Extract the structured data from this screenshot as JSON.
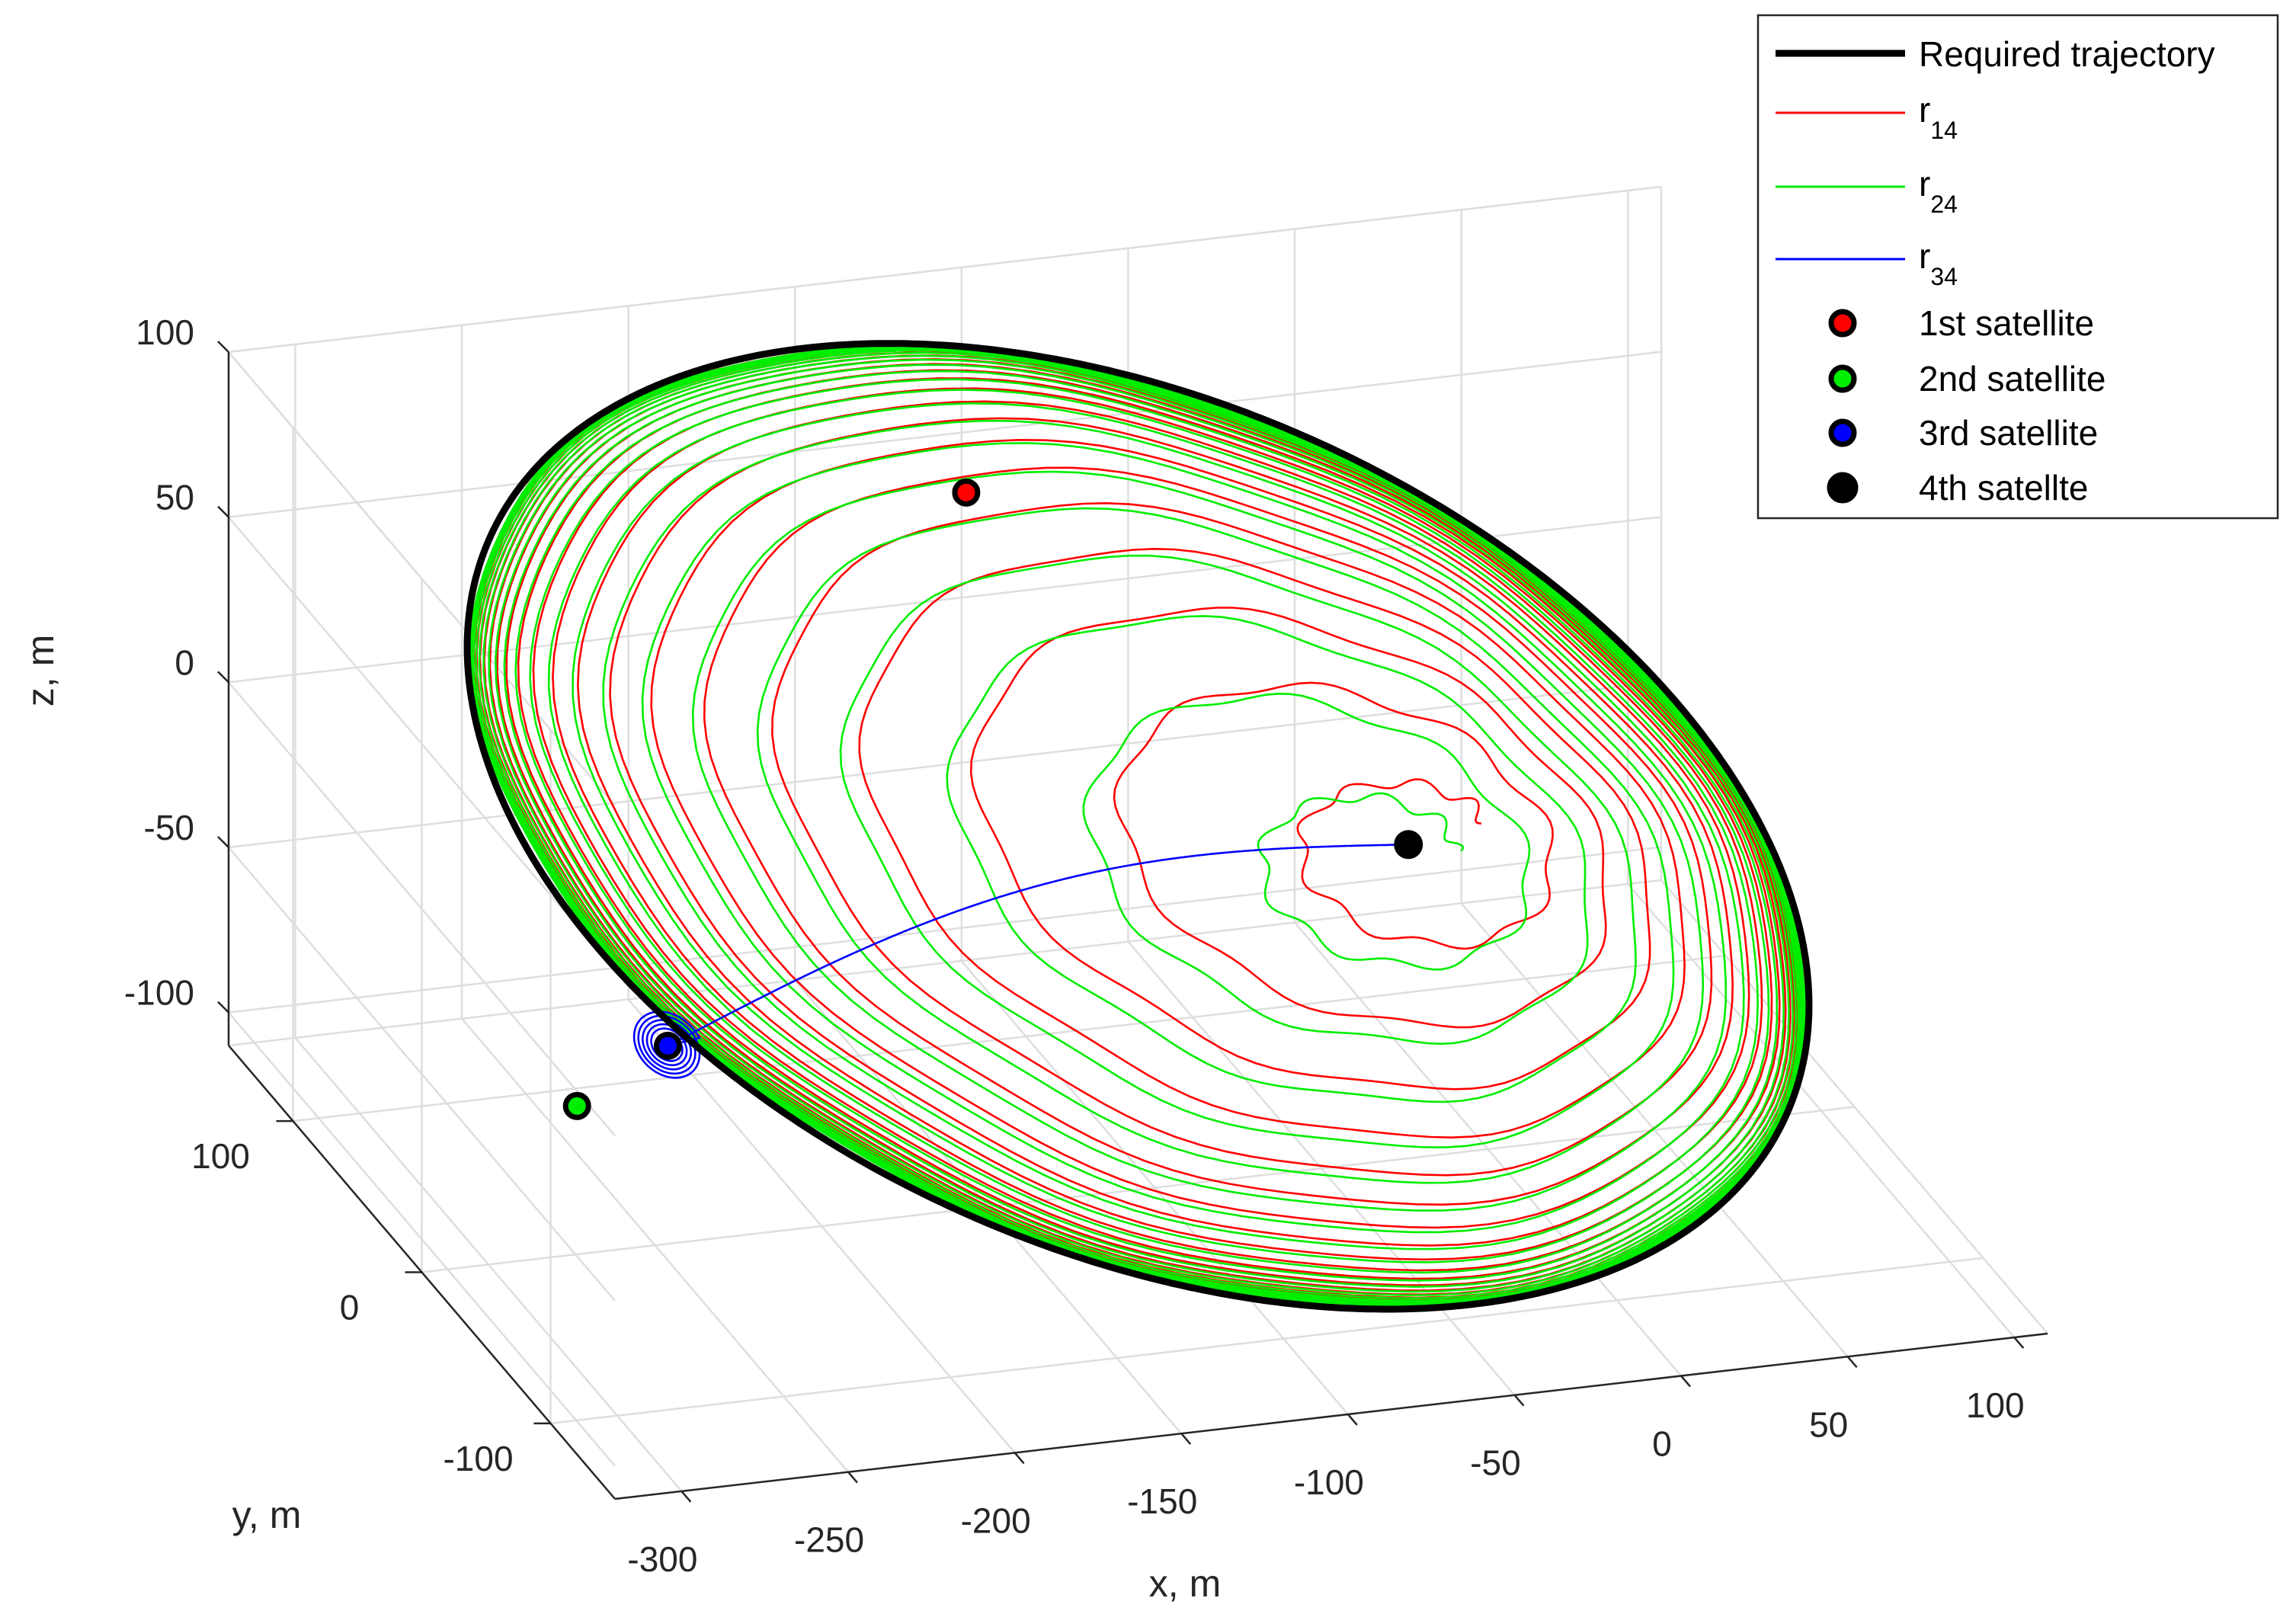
{
  "chart_data": {
    "type": "line3d",
    "title": "",
    "xlabel": "x, m",
    "ylabel": "y, m",
    "zlabel": "z, m",
    "xlim": [
      -320,
      110
    ],
    "ylim": [
      -150,
      150
    ],
    "zlim": [
      -110,
      100
    ],
    "x_ticks": [
      -300,
      -250,
      -200,
      -150,
      -100,
      -50,
      0,
      50,
      100
    ],
    "y_ticks": [
      -100,
      0,
      100
    ],
    "z_ticks": [
      -100,
      -50,
      0,
      50,
      100
    ],
    "x_tick_labels": [
      "-300",
      "-250",
      "-200",
      "-150",
      "-100",
      "-50",
      "0",
      "50",
      "100"
    ],
    "y_tick_labels": [
      "-100",
      "0",
      "100"
    ],
    "z_tick_labels": [
      "-100",
      "-50",
      "0",
      "50",
      "100"
    ],
    "grid": true,
    "legend_position": "top-right",
    "series": [
      {
        "key": "req",
        "name": "Required trajectory",
        "color": "#000000",
        "kind": "line",
        "line_width": "thick",
        "shape": "closed elliptical loop",
        "center": [
          -105,
          0,
          0
        ],
        "semi_axis_x": 195,
        "semi_axis_y": 130,
        "z_amplitude": 95
      },
      {
        "key": "r14",
        "name_base": "r",
        "name_sub": "14",
        "color": "#ff0000",
        "kind": "line",
        "shape": "spiral converging onto required trajectory",
        "start": [
          -10,
          10,
          -20
        ]
      },
      {
        "key": "r24",
        "name_base": "r",
        "name_sub": "24",
        "color": "#00ee00",
        "kind": "line",
        "shape": "spiral converging onto required trajectory",
        "start": [
          -20,
          10,
          -25
        ]
      },
      {
        "key": "r34",
        "name_base": "r",
        "name_sub": "34",
        "color": "#0000ff",
        "kind": "line",
        "shape": "transfer path then small loops",
        "start": [
          -20,
          10,
          -20
        ],
        "end": [
          -250,
          -10,
          -45
        ]
      },
      {
        "key": "sat1",
        "name": "1st satellite",
        "color": "#ff0000",
        "kind": "marker",
        "position": [
          -145,
          30,
          92
        ]
      },
      {
        "key": "sat2",
        "name": "2nd satellite",
        "color": "#00ee00",
        "kind": "marker",
        "position": [
          -285,
          -30,
          -50
        ]
      },
      {
        "key": "sat3",
        "name": "3rd satellite",
        "color": "#0000ff",
        "kind": "marker",
        "position": [
          -250,
          -10,
          -45
        ]
      },
      {
        "key": "sat4",
        "name": "4th satellte",
        "color": "#000000",
        "kind": "marker",
        "position": [
          -20,
          10,
          -20
        ]
      }
    ]
  },
  "legend": {
    "required": "Required trajectory",
    "r14_base": "r",
    "r14_sub": "14",
    "r24_base": "r",
    "r24_sub": "24",
    "r34_base": "r",
    "r34_sub": "34",
    "sat1": "1st satellite",
    "sat2": "2nd satellite",
    "sat3": "3rd satellite",
    "sat4": "4th satellte"
  }
}
